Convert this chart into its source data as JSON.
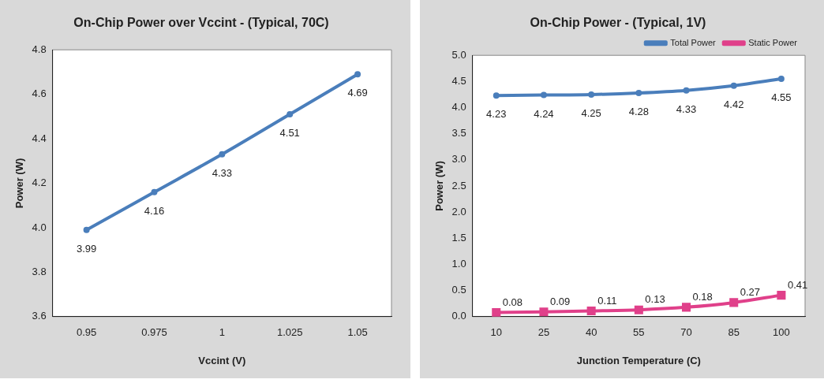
{
  "chart_data": [
    {
      "type": "line",
      "title": "On-Chip Power over Vccint - (Typical, 70C)",
      "xlabel": "Vccint (V)",
      "ylabel": "Power (W)",
      "categories": [
        "0.95",
        "0.975",
        "1",
        "1.025",
        "1.05"
      ],
      "series": [
        {
          "color": "#4a7ebb",
          "values": [
            3.99,
            4.16,
            4.33,
            4.51,
            4.69
          ],
          "marker": "circle"
        }
      ],
      "ylim": [
        3.6,
        4.8
      ],
      "yticks": [
        {
          "value": 3.6,
          "label": "3.6"
        },
        {
          "value": 3.8,
          "label": "3.8"
        },
        {
          "value": 4.0,
          "label": "4.0"
        },
        {
          "value": 4.2,
          "label": "4.2"
        },
        {
          "value": 4.4,
          "label": "4.4"
        },
        {
          "value": 4.6,
          "label": "4.6"
        },
        {
          "value": 4.8,
          "label": "4.8"
        }
      ],
      "grid": false,
      "legend": false,
      "data_labels": true
    },
    {
      "type": "line",
      "title": "On-Chip Power - (Typical, 1V)",
      "xlabel": "Junction Temperature (C)",
      "ylabel": "Power (W)",
      "categories": [
        "10",
        "25",
        "40",
        "55",
        "70",
        "85",
        "100"
      ],
      "series": [
        {
          "name": "Total Power",
          "color": "#4a7ebb",
          "values": [
            4.23,
            4.24,
            4.25,
            4.28,
            4.33,
            4.42,
            4.55
          ],
          "marker": "circle"
        },
        {
          "name": "Static Power",
          "color": "#e0408a",
          "values": [
            0.08,
            0.09,
            0.11,
            0.13,
            0.18,
            0.27,
            0.41
          ],
          "marker": "square"
        }
      ],
      "ylim": [
        0,
        5
      ],
      "yticks": [
        {
          "value": 0,
          "label": "0.0"
        },
        {
          "value": 0.5,
          "label": "0.5"
        },
        {
          "value": 1,
          "label": "1.0"
        },
        {
          "value": 1.5,
          "label": "1.5"
        },
        {
          "value": 2,
          "label": "2.0"
        },
        {
          "value": 2.5,
          "label": "2.5"
        },
        {
          "value": 3,
          "label": "3.0"
        },
        {
          "value": 3.5,
          "label": "3.5"
        },
        {
          "value": 4,
          "label": "4.0"
        },
        {
          "value": 4.5,
          "label": "4.5"
        },
        {
          "value": 5,
          "label": "5.0"
        }
      ],
      "grid": false,
      "legend": "top right",
      "data_labels": true
    }
  ]
}
